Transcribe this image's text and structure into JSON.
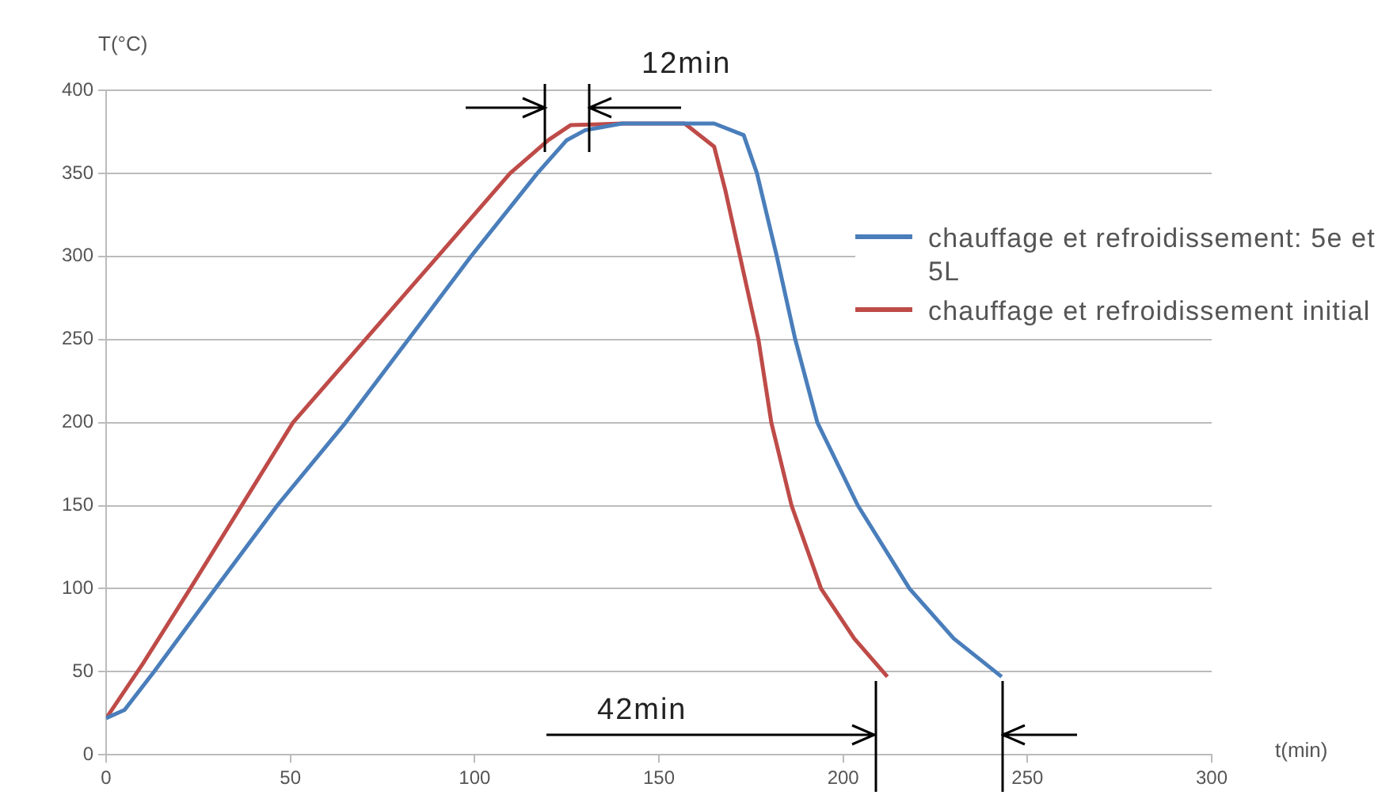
{
  "chart_data": {
    "type": "line",
    "xlabel": "t(min)",
    "ylabel": "T(°C)",
    "xlim": [
      0,
      300
    ],
    "xticks": [
      0,
      50,
      100,
      150,
      200,
      250,
      300
    ],
    "ylim": [
      0,
      400
    ],
    "yticks": [
      0,
      50,
      100,
      150,
      200,
      250,
      300,
      350,
      400
    ],
    "grid": "y",
    "legend": "right",
    "marker": "none",
    "line_style": "solid",
    "series": [
      {
        "name": "chauffage et refroidissement: 5e et 5L",
        "color": "#4a7ebb",
        "x": [
          0,
          5,
          13,
          29.6,
          46.4,
          65,
          99,
          117,
          125,
          130,
          140,
          165,
          173,
          176.6,
          182,
          187,
          193,
          204,
          218,
          230,
          243
        ],
        "values": [
          22,
          27,
          50,
          100,
          150,
          200,
          300,
          350,
          370,
          376,
          380,
          380,
          373,
          350,
          300,
          250,
          200,
          150,
          100,
          70,
          47
        ]
      },
      {
        "name": "chauffage et refroidissement initial",
        "color": "#be4b48",
        "x": [
          0,
          10,
          22.8,
          50.7,
          90,
          109.6,
          120,
          126,
          140,
          157,
          165,
          168,
          172,
          177,
          180.5,
          186,
          194,
          203,
          212
        ],
        "values": [
          22,
          55,
          100,
          200,
          300,
          350,
          370,
          379,
          380,
          380,
          366,
          340,
          300,
          250,
          200,
          150,
          100,
          70,
          47
        ]
      }
    ],
    "annotations": [
      "12min",
      "42min"
    ]
  }
}
